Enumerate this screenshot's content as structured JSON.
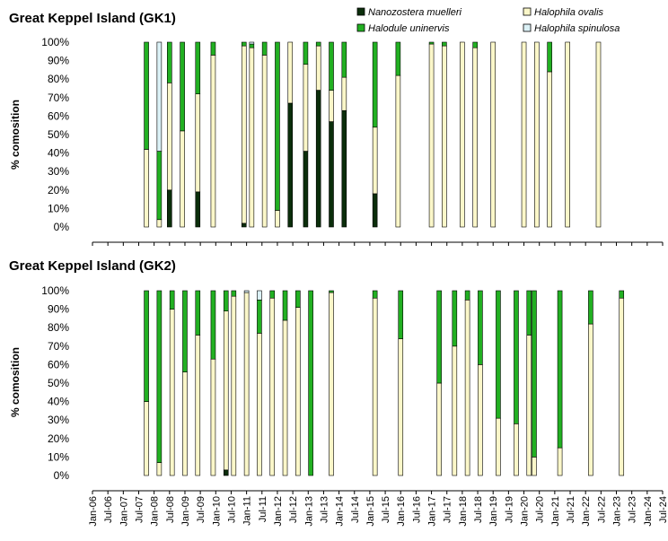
{
  "legend": [
    {
      "name": "Nanozostera muelleri",
      "color": "#0b2e0b"
    },
    {
      "name": "Halophila ovalis",
      "color": "#fbf7c9"
    },
    {
      "name": "Halodule uninervis",
      "color": "#22b022"
    },
    {
      "name": "Halophila spinulosa",
      "color": "#dbf1f6"
    }
  ],
  "chart_data": [
    {
      "type": "bar",
      "stacked": true,
      "title": "Great Keppel Island (GK1)",
      "ylabel": "% comosition",
      "ylim": [
        0,
        100
      ],
      "yticks": [
        "0%",
        "10%",
        "20%",
        "30%",
        "40%",
        "50%",
        "60%",
        "70%",
        "80%",
        "90%",
        "100%"
      ],
      "x_axis_range": [
        "Jan-06",
        "Jul-24"
      ],
      "series_order": [
        "Nanozostera muelleri",
        "Halophila ovalis",
        "Halodule uninervis",
        "Halophila spinulosa"
      ],
      "bars": [
        {
          "date": "2007-10",
          "values": [
            0,
            42,
            58,
            0
          ]
        },
        {
          "date": "2008-03",
          "values": [
            0,
            4,
            37,
            59
          ]
        },
        {
          "date": "2008-07",
          "values": [
            20,
            58,
            22,
            0
          ]
        },
        {
          "date": "2008-12",
          "values": [
            0,
            52,
            48,
            0
          ]
        },
        {
          "date": "2009-06",
          "values": [
            19,
            53,
            28,
            0
          ]
        },
        {
          "date": "2009-12",
          "values": [
            0,
            93,
            7,
            0
          ]
        },
        {
          "date": "2010-12",
          "values": [
            2,
            96,
            2,
            0
          ]
        },
        {
          "date": "2011-03",
          "values": [
            0,
            97,
            2,
            1
          ]
        },
        {
          "date": "2011-08",
          "values": [
            0,
            93,
            7,
            0
          ]
        },
        {
          "date": "2012-01",
          "values": [
            0,
            9,
            91,
            0
          ]
        },
        {
          "date": "2012-06",
          "values": [
            67,
            33,
            0,
            0
          ]
        },
        {
          "date": "2012-12",
          "values": [
            41,
            47,
            12,
            0
          ]
        },
        {
          "date": "2013-05",
          "values": [
            74,
            24,
            2,
            0
          ]
        },
        {
          "date": "2013-10",
          "values": [
            57,
            17,
            26,
            0
          ]
        },
        {
          "date": "2014-03",
          "values": [
            63,
            18,
            19,
            0
          ]
        },
        {
          "date": "2015-03",
          "values": [
            18,
            36,
            46,
            0
          ]
        },
        {
          "date": "2015-12",
          "values": [
            0,
            82,
            18,
            0
          ]
        },
        {
          "date": "2017-01",
          "values": [
            0,
            99,
            1,
            0
          ]
        },
        {
          "date": "2017-06",
          "values": [
            0,
            98,
            2,
            0
          ]
        },
        {
          "date": "2018-01",
          "values": [
            0,
            100,
            0,
            0
          ]
        },
        {
          "date": "2018-06",
          "values": [
            0,
            97,
            3,
            0
          ]
        },
        {
          "date": "2019-01",
          "values": [
            0,
            100,
            0,
            0
          ]
        },
        {
          "date": "2020-01",
          "values": [
            0,
            100,
            0,
            0
          ]
        },
        {
          "date": "2020-06",
          "values": [
            0,
            100,
            0,
            0
          ]
        },
        {
          "date": "2020-11",
          "values": [
            0,
            84,
            16,
            0
          ]
        },
        {
          "date": "2021-06",
          "values": [
            0,
            100,
            0,
            0
          ]
        },
        {
          "date": "2022-06",
          "values": [
            0,
            100,
            0,
            0
          ]
        }
      ]
    },
    {
      "type": "bar",
      "stacked": true,
      "title": "Great Keppel Island (GK2)",
      "ylabel": "% comosition",
      "ylim": [
        0,
        100
      ],
      "yticks": [
        "0%",
        "10%",
        "20%",
        "30%",
        "40%",
        "50%",
        "60%",
        "70%",
        "80%",
        "90%",
        "100%"
      ],
      "xticks": [
        "Jan-06",
        "Jul-06",
        "Jan-07",
        "Jul-07",
        "Jan-08",
        "Jul-08",
        "Jan-09",
        "Jul-09",
        "Jan-10",
        "Jul-10",
        "Jan-11",
        "Jul-11",
        "Jan-12",
        "Jul-12",
        "Jan-13",
        "Jul-13",
        "Jan-14",
        "Jul-14",
        "Jan-15",
        "Jul-15",
        "Jan-16",
        "Jul-16",
        "Jan-17",
        "Jul-17",
        "Jan-18",
        "Jul-18",
        "Jan-19",
        "Jul-19",
        "Jan-20",
        "Jul-20",
        "Jan-21",
        "Jul-21",
        "Jan-22",
        "Jul-22",
        "Jan-23",
        "Jul-23",
        "Jan-24",
        "Jul-24"
      ],
      "series_order": [
        "Nanozostera muelleri",
        "Halophila ovalis",
        "Halodule uninervis",
        "Halophila spinulosa"
      ],
      "bars": [
        {
          "date": "2007-10",
          "values": [
            0,
            40,
            60,
            0
          ]
        },
        {
          "date": "2008-03",
          "values": [
            0,
            7,
            93,
            0
          ]
        },
        {
          "date": "2008-08",
          "values": [
            0,
            90,
            10,
            0
          ]
        },
        {
          "date": "2009-01",
          "values": [
            0,
            56,
            44,
            0
          ]
        },
        {
          "date": "2009-06",
          "values": [
            0,
            76,
            24,
            0
          ]
        },
        {
          "date": "2009-12",
          "values": [
            0,
            63,
            37,
            0
          ]
        },
        {
          "date": "2010-05",
          "values": [
            3,
            86,
            11,
            0
          ]
        },
        {
          "date": "2010-08",
          "values": [
            0,
            97,
            3,
            0
          ]
        },
        {
          "date": "2011-01",
          "values": [
            0,
            99,
            0,
            1
          ]
        },
        {
          "date": "2011-06",
          "values": [
            0,
            77,
            18,
            5
          ]
        },
        {
          "date": "2011-11",
          "values": [
            0,
            96,
            4,
            0
          ]
        },
        {
          "date": "2012-04",
          "values": [
            0,
            84,
            16,
            0
          ]
        },
        {
          "date": "2012-09",
          "values": [
            0,
            91,
            9,
            0
          ]
        },
        {
          "date": "2013-02",
          "values": [
            0,
            0,
            100,
            0
          ]
        },
        {
          "date": "2013-10",
          "values": [
            0,
            99,
            1,
            0
          ]
        },
        {
          "date": "2015-03",
          "values": [
            0,
            96,
            4,
            0
          ]
        },
        {
          "date": "2016-01",
          "values": [
            0,
            74,
            26,
            0
          ]
        },
        {
          "date": "2017-04",
          "values": [
            0,
            50,
            50,
            0
          ]
        },
        {
          "date": "2017-10",
          "values": [
            0,
            70,
            30,
            0
          ]
        },
        {
          "date": "2018-03",
          "values": [
            0,
            95,
            5,
            0
          ]
        },
        {
          "date": "2018-08",
          "values": [
            0,
            60,
            40,
            0
          ]
        },
        {
          "date": "2019-03",
          "values": [
            0,
            31,
            69,
            0
          ]
        },
        {
          "date": "2019-10",
          "values": [
            0,
            28,
            72,
            0
          ]
        },
        {
          "date": "2020-03",
          "values": [
            0,
            76,
            24,
            0
          ]
        },
        {
          "date": "2020-05",
          "values": [
            0,
            10,
            90,
            0
          ]
        },
        {
          "date": "2021-03",
          "values": [
            0,
            15,
            85,
            0
          ]
        },
        {
          "date": "2022-03",
          "values": [
            0,
            82,
            18,
            0
          ]
        },
        {
          "date": "2023-03",
          "values": [
            0,
            96,
            4,
            0
          ]
        }
      ]
    }
  ]
}
